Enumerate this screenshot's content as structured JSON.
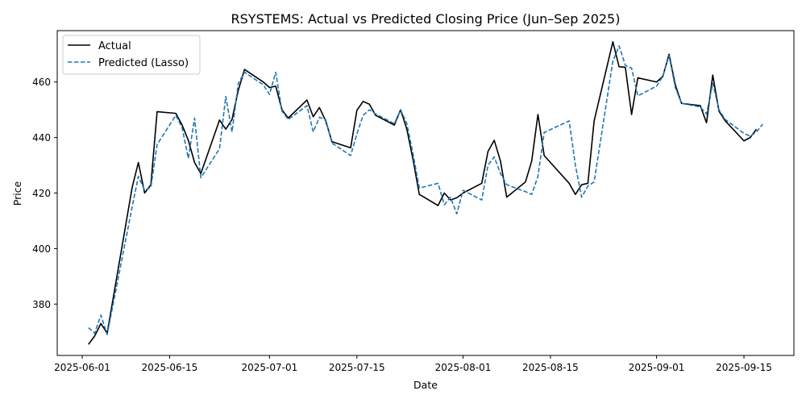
{
  "chart_data": {
    "type": "line",
    "title": "RSYSTEMS: Actual vs Predicted Closing Price (Jun–Sep 2025)",
    "xlabel": "Date",
    "ylabel": "Price",
    "xlim": [
      "2025-05-28",
      "2025-09-23"
    ],
    "ylim": [
      361.5,
      478.5
    ],
    "x_ticks": [
      "2025-06-01",
      "2025-06-15",
      "2025-07-01",
      "2025-07-15",
      "2025-08-01",
      "2025-08-15",
      "2025-09-01",
      "2025-09-15"
    ],
    "y_ticks": [
      380,
      400,
      420,
      440,
      460
    ],
    "grid": false,
    "legend_position": "top-left",
    "x": [
      "2025-06-02",
      "2025-06-03",
      "2025-06-04",
      "2025-06-05",
      "2025-06-09",
      "2025-06-10",
      "2025-06-11",
      "2025-06-12",
      "2025-06-13",
      "2025-06-16",
      "2025-06-17",
      "2025-06-18",
      "2025-06-19",
      "2025-06-20",
      "2025-06-23",
      "2025-06-24",
      "2025-06-25",
      "2025-06-26",
      "2025-06-27",
      "2025-06-30",
      "2025-07-01",
      "2025-07-02",
      "2025-07-03",
      "2025-07-04",
      "2025-07-07",
      "2025-07-08",
      "2025-07-09",
      "2025-07-10",
      "2025-07-11",
      "2025-07-14",
      "2025-07-15",
      "2025-07-16",
      "2025-07-17",
      "2025-07-18",
      "2025-07-21",
      "2025-07-22",
      "2025-07-23",
      "2025-07-24",
      "2025-07-25",
      "2025-07-28",
      "2025-07-29",
      "2025-07-30",
      "2025-07-31",
      "2025-08-01",
      "2025-08-04",
      "2025-08-05",
      "2025-08-06",
      "2025-08-07",
      "2025-08-08",
      "2025-08-11",
      "2025-08-12",
      "2025-08-13",
      "2025-08-14",
      "2025-08-18",
      "2025-08-19",
      "2025-08-20",
      "2025-08-21",
      "2025-08-22",
      "2025-08-25",
      "2025-08-26",
      "2025-08-27",
      "2025-08-28",
      "2025-08-29",
      "2025-09-01",
      "2025-09-02",
      "2025-09-03",
      "2025-09-04",
      "2025-09-05",
      "2025-09-08",
      "2025-09-09",
      "2025-09-10",
      "2025-09-11",
      "2025-09-12",
      "2025-09-15",
      "2025-09-16",
      "2025-09-17",
      "2025-09-18"
    ],
    "series": [
      {
        "name": "Actual",
        "color": "#000000",
        "style": "solid",
        "values": [
          365.5,
          368.5,
          373.0,
          369.5,
          422.0,
          431.0,
          420.0,
          423.0,
          449.3,
          448.7,
          444.5,
          439.0,
          431.0,
          427.0,
          446.3,
          443.0,
          446.5,
          457.0,
          464.5,
          460.0,
          458.0,
          458.5,
          450.0,
          447.0,
          453.5,
          447.5,
          450.8,
          446.0,
          438.5,
          436.3,
          449.8,
          453.0,
          452.0,
          448.0,
          444.5,
          450.0,
          443.0,
          432.0,
          419.5,
          415.5,
          420.0,
          417.5,
          418.3,
          420.0,
          423.5,
          435.0,
          439.0,
          431.5,
          418.5,
          424.0,
          431.5,
          448.3,
          433.5,
          423.5,
          419.5,
          423.0,
          423.5,
          446.0,
          474.5,
          465.5,
          465.3,
          448.3,
          461.5,
          460.0,
          462.0,
          470.0,
          459.0,
          452.3,
          451.5,
          445.3,
          462.5,
          449.5,
          446.0,
          438.8,
          440.0,
          443.0,
          null
        ]
      },
      {
        "name": "Predicted (Lasso)",
        "color": "#1f77b4",
        "style": "dashed",
        "values": [
          371.5,
          369.5,
          376.0,
          369.0,
          415.0,
          426.0,
          421.0,
          422.0,
          437.5,
          448.0,
          443.5,
          432.5,
          447.0,
          425.5,
          436.0,
          454.8,
          442.0,
          459.5,
          463.5,
          459.0,
          455.5,
          463.5,
          449.5,
          446.5,
          451.5,
          442.0,
          447.3,
          446.5,
          438.0,
          433.5,
          441.3,
          448.0,
          450.0,
          448.5,
          445.0,
          450.0,
          445.0,
          434.0,
          421.8,
          423.5,
          415.8,
          418.5,
          412.5,
          421.0,
          417.5,
          430.0,
          433.0,
          427.0,
          423.0,
          420.5,
          419.5,
          426.0,
          441.8,
          446.0,
          430.0,
          418.5,
          422.5,
          424.0,
          467.5,
          473.0,
          466.0,
          465.0,
          455.0,
          458.5,
          462.0,
          469.5,
          458.0,
          452.3,
          451.0,
          448.5,
          459.5,
          450.0,
          446.5,
          441.5,
          440.5,
          442.0,
          444.8
        ]
      }
    ]
  }
}
